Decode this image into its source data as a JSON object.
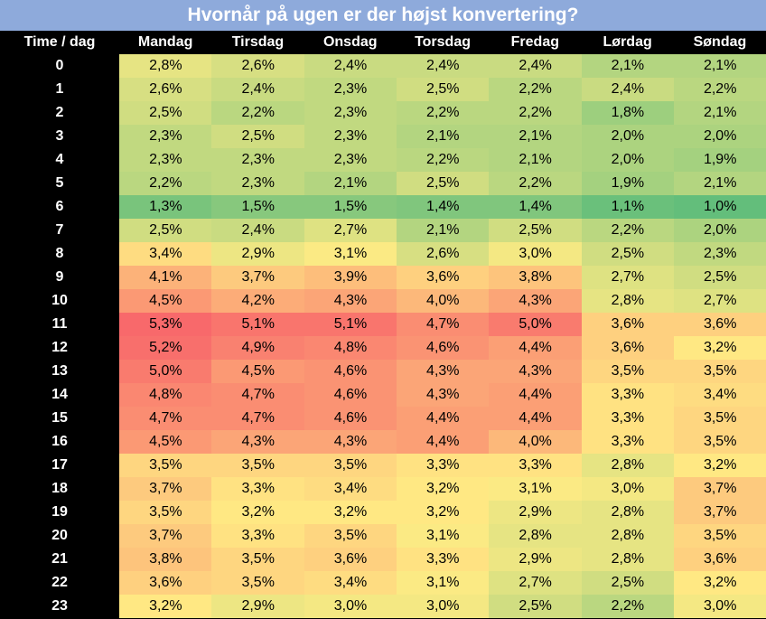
{
  "title": "Hvornår på ugen er der højst konvertering?",
  "chart_data": {
    "type": "heatmap",
    "title": "Hvornår på ugen er der højst konvertering?",
    "corner_label": "Time / dag",
    "columns": [
      "Mandag",
      "Tirsdag",
      "Onsdag",
      "Torsdag",
      "Fredag",
      "Lørdag",
      "Søndag"
    ],
    "rows": [
      "0",
      "1",
      "2",
      "3",
      "4",
      "5",
      "6",
      "7",
      "8",
      "9",
      "10",
      "11",
      "12",
      "13",
      "14",
      "15",
      "16",
      "17",
      "18",
      "19",
      "20",
      "21",
      "22",
      "23"
    ],
    "values": [
      [
        2.8,
        2.6,
        2.4,
        2.4,
        2.4,
        2.1,
        2.1
      ],
      [
        2.6,
        2.4,
        2.3,
        2.5,
        2.2,
        2.4,
        2.2
      ],
      [
        2.5,
        2.2,
        2.3,
        2.2,
        2.2,
        1.8,
        2.1
      ],
      [
        2.3,
        2.5,
        2.3,
        2.1,
        2.1,
        2.0,
        2.0
      ],
      [
        2.3,
        2.3,
        2.3,
        2.2,
        2.1,
        2.0,
        1.9
      ],
      [
        2.2,
        2.3,
        2.1,
        2.5,
        2.2,
        1.9,
        2.1
      ],
      [
        1.3,
        1.5,
        1.5,
        1.4,
        1.4,
        1.1,
        1.0
      ],
      [
        2.5,
        2.4,
        2.7,
        2.1,
        2.5,
        2.2,
        2.0
      ],
      [
        3.4,
        2.9,
        3.1,
        2.6,
        3.0,
        2.5,
        2.3
      ],
      [
        4.1,
        3.7,
        3.9,
        3.6,
        3.8,
        2.7,
        2.5
      ],
      [
        4.5,
        4.2,
        4.3,
        4.0,
        4.3,
        2.8,
        2.7
      ],
      [
        5.3,
        5.1,
        5.1,
        4.7,
        5.0,
        3.6,
        3.6
      ],
      [
        5.2,
        4.9,
        4.8,
        4.6,
        4.4,
        3.6,
        3.2
      ],
      [
        5.0,
        4.5,
        4.6,
        4.3,
        4.3,
        3.5,
        3.5
      ],
      [
        4.8,
        4.7,
        4.6,
        4.3,
        4.4,
        3.3,
        3.4
      ],
      [
        4.7,
        4.7,
        4.6,
        4.4,
        4.4,
        3.3,
        3.5
      ],
      [
        4.5,
        4.3,
        4.3,
        4.4,
        4.0,
        3.3,
        3.5
      ],
      [
        3.5,
        3.5,
        3.5,
        3.3,
        3.3,
        2.8,
        3.2
      ],
      [
        3.7,
        3.3,
        3.4,
        3.2,
        3.1,
        3.0,
        3.7
      ],
      [
        3.5,
        3.2,
        3.2,
        3.2,
        2.9,
        2.8,
        3.7
      ],
      [
        3.7,
        3.3,
        3.5,
        3.1,
        2.8,
        2.8,
        3.5
      ],
      [
        3.8,
        3.5,
        3.6,
        3.3,
        2.9,
        2.8,
        3.6
      ],
      [
        3.6,
        3.5,
        3.4,
        3.1,
        2.7,
        2.5,
        3.2
      ],
      [
        3.2,
        2.9,
        3.0,
        3.0,
        2.5,
        2.2,
        3.0
      ]
    ],
    "unit_suffix": "%",
    "color_scale": {
      "low": "#63be7b",
      "mid": "#ffeb84",
      "high": "#f8696b"
    },
    "legend": "none",
    "grid": "off"
  }
}
